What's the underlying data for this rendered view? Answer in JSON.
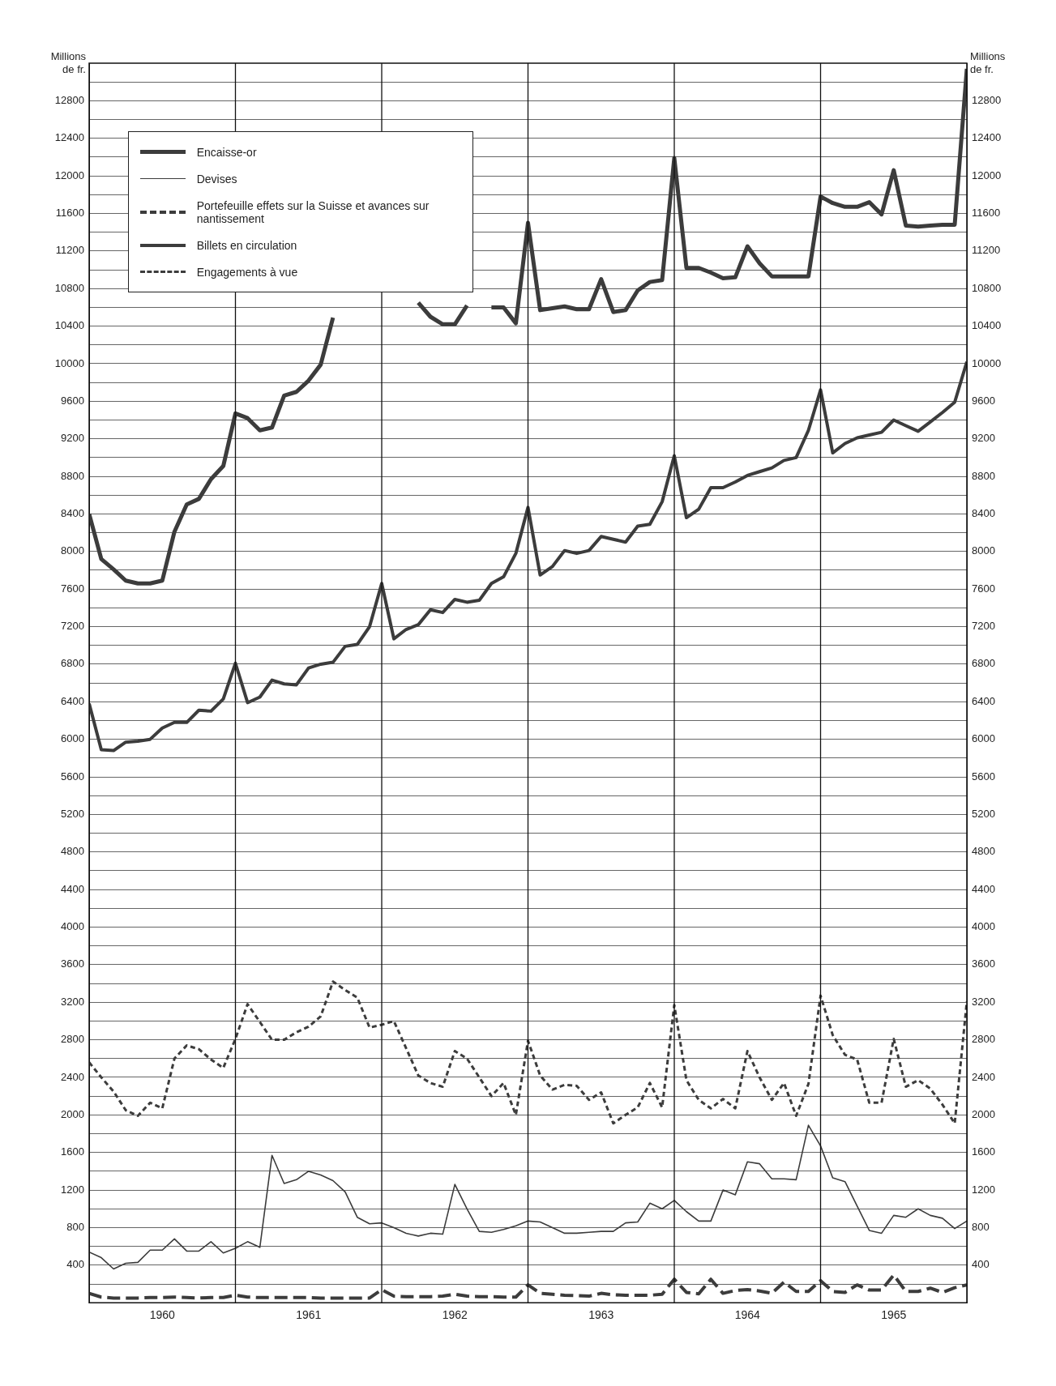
{
  "chart_data": {
    "type": "line",
    "ylabel": "Millions de fr.",
    "y2label": "Millions de fr.",
    "x": [
      1960,
      1960.083,
      1960.167,
      1960.25,
      1960.333,
      1960.417,
      1960.5,
      1960.583,
      1960.667,
      1960.75,
      1960.833,
      1960.917,
      1961,
      1961.083,
      1961.167,
      1961.25,
      1961.333,
      1961.417,
      1961.5,
      1961.583,
      1961.667,
      1961.75,
      1961.833,
      1961.917,
      1962,
      1962.083,
      1962.167,
      1962.25,
      1962.333,
      1962.417,
      1962.5,
      1962.583,
      1962.667,
      1962.75,
      1962.833,
      1962.917,
      1963,
      1963.083,
      1963.167,
      1963.25,
      1963.333,
      1963.417,
      1963.5,
      1963.583,
      1963.667,
      1963.75,
      1963.833,
      1963.917,
      1964,
      1964.083,
      1964.167,
      1964.25,
      1964.333,
      1964.417,
      1964.5,
      1964.583,
      1964.667,
      1964.75,
      1964.833,
      1964.917,
      1965,
      1965.083,
      1965.167,
      1965.25,
      1965.333,
      1965.417,
      1965.5,
      1965.583,
      1965.667,
      1965.75,
      1965.833,
      1965.917,
      1966
    ],
    "series": [
      {
        "name": "Encaisse-or",
        "color": "#3c3c3c",
        "line_style": "solid",
        "values": [
          8400,
          7920,
          7810,
          7690,
          7660,
          7660,
          7690,
          8210,
          8500,
          8560,
          8770,
          8910,
          9470,
          9420,
          9290,
          9320,
          9660,
          9700,
          9820,
          9990,
          10490,
          null,
          null,
          null,
          null,
          null,
          null,
          10650,
          10500,
          10420,
          10420,
          10620,
          null,
          10600,
          10600,
          10430,
          11500,
          10570,
          10590,
          10610,
          10580,
          10580,
          10900,
          10550,
          10570,
          10780,
          10870,
          10890,
          12190,
          11020,
          11020,
          10970,
          10910,
          10920,
          11250,
          11070,
          10930,
          10930,
          10930,
          10930,
          11780,
          11710,
          11670,
          11670,
          11720,
          11590,
          12060,
          11470,
          11460,
          11470,
          11480,
          11480,
          13140
        ]
      },
      {
        "name": "Devises",
        "color": "#3c3c3c",
        "line_style": "solid",
        "values": [
          540,
          480,
          360,
          420,
          430,
          560,
          560,
          680,
          550,
          550,
          650,
          530,
          580,
          650,
          590,
          1570,
          1270,
          1310,
          1400,
          1360,
          1300,
          1180,
          910,
          840,
          850,
          800,
          740,
          710,
          740,
          730,
          1260,
          1000,
          760,
          750,
          780,
          820,
          870,
          860,
          800,
          740,
          740,
          750,
          760,
          760,
          850,
          860,
          1060,
          1000,
          1090,
          970,
          870,
          870,
          1200,
          1150,
          1500,
          1480,
          1320,
          1320,
          1310,
          1890,
          1670,
          1330,
          1290,
          1030,
          770,
          740,
          930,
          910,
          1000,
          930,
          900,
          790,
          870
        ]
      },
      {
        "name": "Portefeuille effets sur la Suisse et avances sur nantissement",
        "color": "#3c3c3c",
        "line_style": "dashed",
        "values": [
          100,
          60,
          50,
          50,
          50,
          55,
          55,
          60,
          55,
          50,
          55,
          55,
          80,
          60,
          55,
          55,
          55,
          55,
          55,
          50,
          50,
          50,
          50,
          50,
          140,
          70,
          65,
          65,
          65,
          70,
          90,
          70,
          65,
          65,
          60,
          60,
          190,
          100,
          90,
          80,
          75,
          70,
          100,
          85,
          80,
          80,
          80,
          90,
          250,
          110,
          95,
          250,
          100,
          130,
          140,
          125,
          100,
          220,
          120,
          120,
          235,
          120,
          110,
          190,
          135,
          135,
          295,
          120,
          120,
          155,
          110,
          160,
          190
        ]
      },
      {
        "name": "Billets en circulation",
        "color": "#3c3c3c",
        "line_style": "solid",
        "values": [
          6380,
          5890,
          5880,
          5970,
          5980,
          6000,
          6120,
          6180,
          6180,
          6310,
          6300,
          6430,
          6810,
          6390,
          6450,
          6630,
          6590,
          6580,
          6760,
          6800,
          6820,
          6990,
          7010,
          7200,
          7660,
          7070,
          7170,
          7220,
          7380,
          7350,
          7490,
          7460,
          7480,
          7660,
          7730,
          7980,
          8470,
          7750,
          7840,
          8010,
          7980,
          8010,
          8160,
          8130,
          8100,
          8270,
          8290,
          8530,
          9020,
          8360,
          8450,
          8680,
          8680,
          8740,
          8810,
          8850,
          8890,
          8970,
          9000,
          9290,
          9720,
          9050,
          9150,
          9210,
          9240,
          9270,
          9400,
          9340,
          9280,
          9380,
          9480,
          9590,
          10020
        ]
      },
      {
        "name": "Engagements à vue",
        "color": "#3c3c3c",
        "line_style": "dotted",
        "values": [
          2560,
          2400,
          2250,
          2050,
          1990,
          2130,
          2070,
          2600,
          2740,
          2700,
          2590,
          2500,
          2810,
          3180,
          2990,
          2800,
          2800,
          2880,
          2940,
          3050,
          3420,
          3330,
          3250,
          2930,
          2960,
          3000,
          2710,
          2420,
          2340,
          2300,
          2680,
          2600,
          2400,
          2200,
          2340,
          2000,
          2790,
          2420,
          2270,
          2320,
          2310,
          2160,
          2240,
          1910,
          2000,
          2080,
          2340,
          2080,
          3170,
          2370,
          2160,
          2070,
          2170,
          2070,
          2680,
          2400,
          2160,
          2340,
          1990,
          2330,
          3270,
          2850,
          2640,
          2590,
          2130,
          2130,
          2810,
          2300,
          2370,
          2280,
          2110,
          1910,
          3210
        ]
      }
    ],
    "xlim": [
      1960,
      1966
    ],
    "xticks": [
      {
        "value": 1960.5,
        "label": "1960"
      },
      {
        "value": 1961.5,
        "label": "1961"
      },
      {
        "value": 1962.5,
        "label": "1962"
      },
      {
        "value": 1963.5,
        "label": "1963"
      },
      {
        "value": 1964.5,
        "label": "1964"
      },
      {
        "value": 1965.5,
        "label": "1965"
      }
    ],
    "ylim": [
      0,
      13200
    ],
    "yticks": [
      {
        "value": 0,
        "label": null
      },
      {
        "value": 200,
        "label": null
      },
      400,
      {
        "value": 600,
        "label": null
      },
      800,
      {
        "value": 1000,
        "label": null
      },
      1200,
      {
        "value": 1400,
        "label": null
      },
      1600,
      {
        "value": 1800,
        "label": null
      },
      2000,
      {
        "value": 2200,
        "label": null
      },
      2400,
      {
        "value": 2600,
        "label": null
      },
      2800,
      {
        "value": 3000,
        "label": null
      },
      3200,
      {
        "value": 3400,
        "label": null
      },
      3600,
      {
        "value": 3800,
        "label": null
      },
      4000,
      {
        "value": 4200,
        "label": null
      },
      4400,
      {
        "value": 4600,
        "label": null
      },
      4800,
      {
        "value": 5000,
        "label": null
      },
      5200,
      {
        "value": 5400,
        "label": null
      },
      5600,
      {
        "value": 5800,
        "label": null
      },
      6000,
      {
        "value": 6200,
        "label": null
      },
      6400,
      {
        "value": 6600,
        "label": null
      },
      6800,
      {
        "value": 7000,
        "label": null
      },
      7200,
      {
        "value": 7400,
        "label": null
      },
      7600,
      {
        "value": 7800,
        "label": null
      },
      8000,
      {
        "value": 8200,
        "label": null
      },
      8400,
      {
        "value": 8600,
        "label": null
      },
      8800,
      {
        "value": 9000,
        "label": null
      },
      9200,
      {
        "value": 9400,
        "label": null
      },
      9600,
      {
        "value": 9800,
        "label": null
      },
      10000,
      {
        "value": 10200,
        "label": null
      },
      10400,
      {
        "value": 10600,
        "label": null
      },
      10800,
      {
        "value": 11000,
        "label": null
      },
      11200,
      {
        "value": 11400,
        "label": null
      },
      11600,
      {
        "value": 11800,
        "label": null
      },
      12000,
      {
        "value": 12200,
        "label": null
      },
      12400,
      {
        "value": 12600,
        "label": null
      },
      12800,
      {
        "value": 13000,
        "label": null
      }
    ],
    "y2lim": [
      0,
      13200
    ],
    "y2ticks": [
      400,
      800,
      1200,
      1600,
      2000,
      2400,
      2800,
      3200,
      3600,
      4000,
      4400,
      4800,
      5200,
      5600,
      6000,
      6400,
      6800,
      7200,
      7600,
      8000,
      8400,
      8800,
      9200,
      9600,
      10000,
      10400,
      10800,
      11200,
      11600,
      12000,
      12400,
      12800
    ],
    "ref_lines": [
      {
        "axis": "x",
        "value": 1961
      },
      {
        "axis": "x",
        "value": 1962
      },
      {
        "axis": "x",
        "value": 1963
      },
      {
        "axis": "x",
        "value": 1964
      },
      {
        "axis": "x",
        "value": 1965
      }
    ],
    "grid": "y",
    "legend": "top left",
    "marker": "none"
  }
}
